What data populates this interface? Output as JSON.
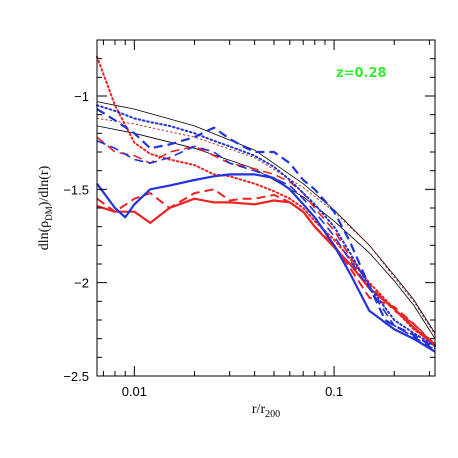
{
  "chart_data": {
    "type": "line",
    "title": "",
    "xlabel": {
      "main": "r/r",
      "sub": "200"
    },
    "ylabel": {
      "pre": "dln(ρ",
      "sub": "DM",
      "post": ")/dln(r)"
    },
    "x_scale": "log",
    "xlim": [
      0.0065,
      0.32
    ],
    "ylim": [
      -2.5,
      -0.7
    ],
    "x_ticks": [
      {
        "value": 0.01,
        "label": "0.01"
      },
      {
        "value": 0.1,
        "label": "0.1"
      }
    ],
    "y_ticks": [
      {
        "value": -1,
        "label": "−1"
      },
      {
        "value": -1.5,
        "label": "−1.5"
      },
      {
        "value": -2,
        "label": "−2"
      },
      {
        "value": -2.5,
        "label": "−2.5"
      }
    ],
    "grid": false,
    "legend": "none",
    "annotation": {
      "text": "z=0.28",
      "color": "#33ee33",
      "position": "top-right"
    },
    "series": [
      {
        "color": "#000000",
        "style": "solid",
        "width": 0.8,
        "x": [
          0.0065,
          0.01,
          0.02,
          0.04,
          0.07,
          0.1,
          0.15,
          0.2,
          0.25,
          0.32
        ],
        "y": [
          -1.03,
          -1.07,
          -1.16,
          -1.29,
          -1.47,
          -1.61,
          -1.8,
          -1.96,
          -2.09,
          -2.27
        ]
      },
      {
        "color": "#000000",
        "style": "solid",
        "width": 0.8,
        "x": [
          0.0065,
          0.01,
          0.02,
          0.04,
          0.07,
          0.1,
          0.15,
          0.2,
          0.25,
          0.32
        ],
        "y": [
          -1.16,
          -1.2,
          -1.28,
          -1.39,
          -1.54,
          -1.67,
          -1.84,
          -1.99,
          -2.12,
          -2.3
        ]
      },
      {
        "color": "#aa2222",
        "style": "dotted",
        "width": 0.9,
        "x": [
          0.0065,
          0.01,
          0.02,
          0.04,
          0.07,
          0.1,
          0.15,
          0.2,
          0.25,
          0.32
        ],
        "y": [
          -1.12,
          -1.15,
          -1.22,
          -1.33,
          -1.49,
          -1.62,
          -1.8,
          -1.97,
          -2.1,
          -2.28
        ]
      },
      {
        "color": "#ee2222",
        "style": "solid",
        "width": 2.2,
        "x": [
          0.0065,
          0.008,
          0.01,
          0.012,
          0.015,
          0.02,
          0.025,
          0.03,
          0.04,
          0.05,
          0.06,
          0.07,
          0.08,
          0.1,
          0.12,
          0.15,
          0.2,
          0.25,
          0.32
        ],
        "y": [
          -1.59,
          -1.62,
          -1.62,
          -1.68,
          -1.6,
          -1.55,
          -1.57,
          -1.57,
          -1.58,
          -1.56,
          -1.57,
          -1.62,
          -1.7,
          -1.81,
          -1.9,
          -2.03,
          -2.14,
          -2.24,
          -2.34
        ]
      },
      {
        "color": "#ee2222",
        "style": "dashed",
        "width": 2,
        "x": [
          0.0065,
          0.008,
          0.01,
          0.012,
          0.015,
          0.02,
          0.025,
          0.03,
          0.035,
          0.04,
          0.05,
          0.06,
          0.07,
          0.08,
          0.1,
          0.12,
          0.15,
          0.2,
          0.25,
          0.32
        ],
        "y": [
          -1.55,
          -1.62,
          -1.55,
          -1.52,
          -1.6,
          -1.52,
          -1.5,
          -1.56,
          -1.55,
          -1.55,
          -1.53,
          -1.57,
          -1.62,
          -1.7,
          -1.8,
          -1.92,
          -2.08,
          -2.13,
          -2.22,
          -2.34
        ]
      },
      {
        "color": "#ee2222",
        "style": "dotted",
        "width": 2,
        "x": [
          0.0065,
          0.008,
          0.01,
          0.012,
          0.015,
          0.02,
          0.025,
          0.03,
          0.04,
          0.05,
          0.06,
          0.07,
          0.08,
          0.1,
          0.12,
          0.15,
          0.2,
          0.25,
          0.32
        ],
        "y": [
          -0.79,
          -1.05,
          -1.25,
          -1.31,
          -1.34,
          -1.37,
          -1.42,
          -1.43,
          -1.47,
          -1.51,
          -1.55,
          -1.6,
          -1.67,
          -1.77,
          -1.87,
          -2.0,
          -2.14,
          -2.25,
          -2.33
        ]
      },
      {
        "color": "#ee2222",
        "style": "dashed",
        "width": 1.6,
        "x": [
          0.0065,
          0.008,
          0.01,
          0.012,
          0.015,
          0.02,
          0.025,
          0.03,
          0.04,
          0.05,
          0.06,
          0.07,
          0.08,
          0.1,
          0.12,
          0.15,
          0.2,
          0.25,
          0.32
        ],
        "y": [
          -1.22,
          -1.3,
          -1.32,
          -1.36,
          -1.3,
          -1.27,
          -1.32,
          -1.36,
          -1.39,
          -1.42,
          -1.46,
          -1.52,
          -1.6,
          -1.72,
          -1.86,
          -2.01,
          -2.15,
          -2.22,
          -2.33
        ]
      },
      {
        "color": "#2233dd",
        "style": "solid",
        "width": 2.2,
        "x": [
          0.0065,
          0.008,
          0.009,
          0.01,
          0.012,
          0.015,
          0.02,
          0.025,
          0.03,
          0.04,
          0.05,
          0.06,
          0.07,
          0.08,
          0.1,
          0.12,
          0.15,
          0.2,
          0.25,
          0.32
        ],
        "y": [
          -1.47,
          -1.6,
          -1.65,
          -1.58,
          -1.5,
          -1.48,
          -1.45,
          -1.43,
          -1.42,
          -1.42,
          -1.44,
          -1.5,
          -1.58,
          -1.65,
          -1.8,
          -1.95,
          -2.15,
          -2.25,
          -2.3,
          -2.37
        ]
      },
      {
        "color": "#2233dd",
        "style": "dashed",
        "width": 2.2,
        "x": [
          0.0065,
          0.008,
          0.01,
          0.012,
          0.015,
          0.02,
          0.025,
          0.03,
          0.035,
          0.04,
          0.05,
          0.06,
          0.07,
          0.08,
          0.1,
          0.12,
          0.15,
          0.18,
          0.2,
          0.25,
          0.32
        ],
        "y": [
          -1.07,
          -1.13,
          -1.2,
          -1.28,
          -1.26,
          -1.22,
          -1.17,
          -1.23,
          -1.27,
          -1.3,
          -1.3,
          -1.36,
          -1.45,
          -1.5,
          -1.62,
          -1.78,
          -2.02,
          -2.2,
          -2.23,
          -2.28,
          -2.35
        ]
      },
      {
        "color": "#2233dd",
        "style": "dotted",
        "width": 2,
        "x": [
          0.0065,
          0.008,
          0.01,
          0.012,
          0.015,
          0.02,
          0.025,
          0.03,
          0.04,
          0.05,
          0.06,
          0.07,
          0.08,
          0.1,
          0.12,
          0.15,
          0.2,
          0.25,
          0.32
        ],
        "y": [
          -1.05,
          -1.08,
          -1.12,
          -1.14,
          -1.16,
          -1.2,
          -1.24,
          -1.27,
          -1.32,
          -1.38,
          -1.45,
          -1.52,
          -1.58,
          -1.7,
          -1.84,
          -2.02,
          -2.2,
          -2.27,
          -2.34
        ]
      },
      {
        "color": "#2233dd",
        "style": "dashed",
        "width": 1.6,
        "x": [
          0.0065,
          0.008,
          0.01,
          0.012,
          0.015,
          0.02,
          0.025,
          0.03,
          0.04,
          0.05,
          0.06,
          0.07,
          0.08,
          0.1,
          0.12,
          0.15,
          0.2,
          0.25,
          0.32
        ],
        "y": [
          -1.24,
          -1.28,
          -1.34,
          -1.36,
          -1.33,
          -1.27,
          -1.3,
          -1.36,
          -1.4,
          -1.44,
          -1.48,
          -1.55,
          -1.62,
          -1.75,
          -1.88,
          -2.03,
          -2.23,
          -2.29,
          -2.36
        ]
      }
    ]
  }
}
